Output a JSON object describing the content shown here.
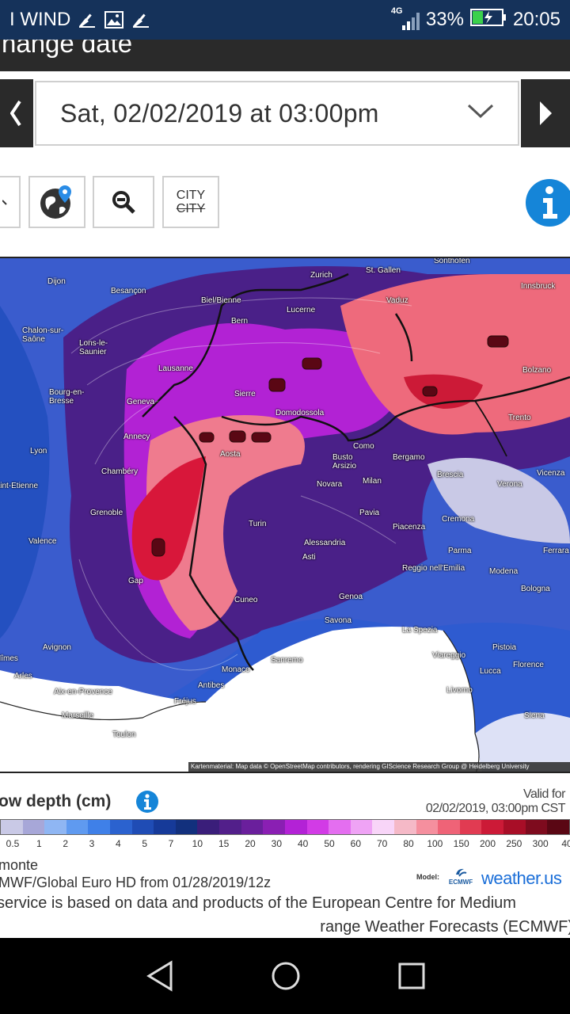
{
  "status": {
    "carrier": "I WIND",
    "network": "4G",
    "battery": "33%",
    "time": "20:05"
  },
  "header": {
    "title_partial": "hange date"
  },
  "date_picker": {
    "value": "Sat, 02/02/2019 at 03:00pm"
  },
  "tools": {
    "city_label": "CITY",
    "city_strike_label": "CITY"
  },
  "map": {
    "labels": [
      {
        "text": "Dijon"
      },
      {
        "text": "Besançon"
      },
      {
        "text": "Zurich"
      },
      {
        "text": "St. Gallen"
      },
      {
        "text": "Sonthofen"
      },
      {
        "text": "Innsbruck"
      },
      {
        "text": "Vaduz"
      },
      {
        "text": "Biel/Bienne"
      },
      {
        "text": "Lucerne"
      },
      {
        "text": "Bern"
      },
      {
        "text": "Chalon-sur-Saône"
      },
      {
        "text": "Lons-le-Saunier"
      },
      {
        "text": "Lausanne"
      },
      {
        "text": "Bolzano"
      },
      {
        "text": "Bourg-en-Bresse"
      },
      {
        "text": "Geneva"
      },
      {
        "text": "Sierre"
      },
      {
        "text": "Domodossola"
      },
      {
        "text": "Trento"
      },
      {
        "text": "Annecy"
      },
      {
        "text": "Lyon"
      },
      {
        "text": "Aosta"
      },
      {
        "text": "Como"
      },
      {
        "text": "Bergamo"
      },
      {
        "text": "Busto Arsizio"
      },
      {
        "text": "Vicenza"
      },
      {
        "text": "Chambéry"
      },
      {
        "text": "Brescia"
      },
      {
        "text": "Novara"
      },
      {
        "text": "Milan"
      },
      {
        "text": "Verona"
      },
      {
        "text": "Saint-Etienne"
      },
      {
        "text": "Grenoble"
      },
      {
        "text": "Pavia"
      },
      {
        "text": "Cremona"
      },
      {
        "text": "Turin"
      },
      {
        "text": "Piacenza"
      },
      {
        "text": "Valence"
      },
      {
        "text": "Alessandria"
      },
      {
        "text": "Parma"
      },
      {
        "text": "Asti"
      },
      {
        "text": "Ferrara"
      },
      {
        "text": "Reggio nell'Emilia"
      },
      {
        "text": "Modena"
      },
      {
        "text": "Gap"
      },
      {
        "text": "Bologna"
      },
      {
        "text": "Cuneo"
      },
      {
        "text": "Genoa"
      },
      {
        "text": "Savona"
      },
      {
        "text": "La Spezia"
      },
      {
        "text": "Avignon"
      },
      {
        "text": "Nîmes"
      },
      {
        "text": "Pistoia"
      },
      {
        "text": "Viareggio"
      },
      {
        "text": "Florence"
      },
      {
        "text": "Monaco"
      },
      {
        "text": "Sanremo"
      },
      {
        "text": "Lucca"
      },
      {
        "text": "Arles"
      },
      {
        "text": "Antibes"
      },
      {
        "text": "Aix-en-Provence"
      },
      {
        "text": "Fréjus"
      },
      {
        "text": "Livorno"
      },
      {
        "text": "Marseille"
      },
      {
        "text": "Siena"
      },
      {
        "text": "Toulon"
      }
    ],
    "attribution": "Kartenmaterial: Map data © OpenStreetMap contributors, rendering GIScience Research Group @ Heidelberg University"
  },
  "legend": {
    "title_partial": "ow depth (cm)",
    "valid_for_label": "Valid for",
    "valid_for_value": "02/02/2019, 03:00pm CST",
    "ticks": [
      "0.5",
      "1",
      "2",
      "3",
      "4",
      "5",
      "7",
      "10",
      "15",
      "20",
      "30",
      "40",
      "50",
      "60",
      "70",
      "80",
      "100",
      "150",
      "200",
      "250",
      "300",
      "40"
    ],
    "colors": [
      "#c9c9e6",
      "#a7a7d8",
      "#8fb6f3",
      "#5f9af0",
      "#3f80e8",
      "#2b62cf",
      "#1f4cb5",
      "#163a99",
      "#12307d",
      "#3a1e7a",
      "#521f8a",
      "#6a1f9c",
      "#8a1fb3",
      "#b322d6",
      "#d23be6",
      "#e46ef0",
      "#efa3f5",
      "#f8d5f8",
      "#f5b9c7",
      "#f58f9e",
      "#ef6377",
      "#e13b52",
      "#cc1a37",
      "#a80e27",
      "#7e0b1e",
      "#5a0714"
    ]
  },
  "model": {
    "line1_partial": "monte",
    "line2_partial": "MWF/Global Euro HD from 01/28/2019/12z",
    "model_label": "Model:",
    "ecmwf": "ECMWF",
    "brand": "weather.us"
  },
  "disclaimer": {
    "line1_partial": "service is based on data and products of the European Centre for Medium",
    "line2_partial": "range Weather Forecasts (ECMWF)"
  }
}
